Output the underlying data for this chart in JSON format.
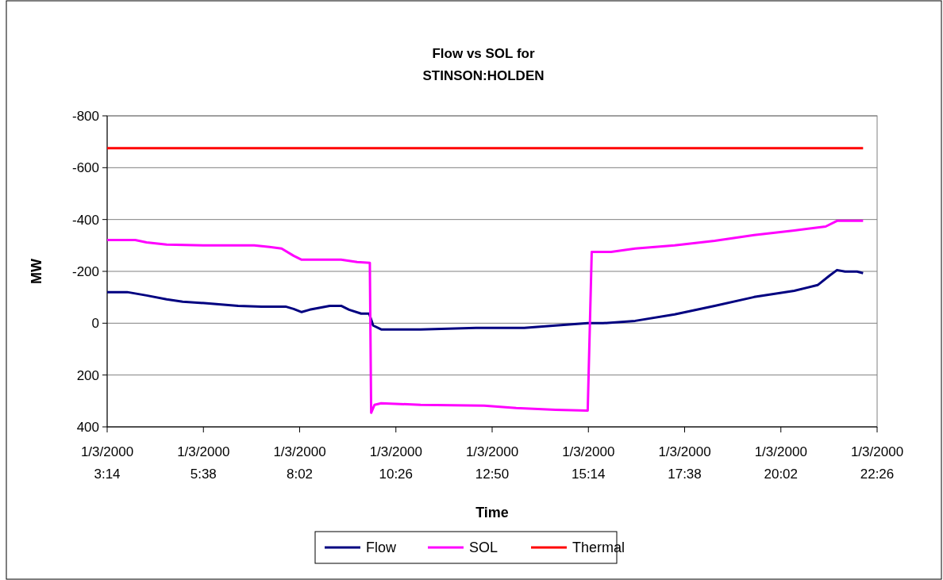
{
  "chart_data": {
    "type": "line",
    "title": "Flow vs SOL for\nSTINSON:HOLDEN",
    "xlabel": "Time",
    "ylabel": "MW",
    "xlim": [
      "2000-01-03T03:14",
      "2000-01-03T22:26"
    ],
    "xticks": [
      {
        "value": "2000-01-03T03:14",
        "label": "1/3/2000\n3:14"
      },
      {
        "value": "2000-01-03T05:38",
        "label": "1/3/2000\n5:38"
      },
      {
        "value": "2000-01-03T08:02",
        "label": "1/3/2000\n8:02"
      },
      {
        "value": "2000-01-03T10:26",
        "label": "1/3/2000\n10:26"
      },
      {
        "value": "2000-01-03T12:50",
        "label": "1/3/2000\n12:50"
      },
      {
        "value": "2000-01-03T15:14",
        "label": "1/3/2000\n15:14"
      },
      {
        "value": "2000-01-03T17:38",
        "label": "1/3/2000\n17:38"
      },
      {
        "value": "2000-01-03T20:02",
        "label": "1/3/2000\n20:02"
      },
      {
        "value": "2000-01-03T22:26",
        "label": "1/3/2000\n22:26"
      }
    ],
    "ylim": [
      400,
      -800
    ],
    "yticks": [
      -800,
      -600,
      -400,
      -200,
      0,
      200,
      400
    ],
    "grid": "y",
    "legend": "bottom",
    "line_style": "solid",
    "series": [
      {
        "name": "Flow",
        "color": "#000080",
        "x": [
          "2000-01-03T03:14",
          "2000-01-03T03:44",
          "2000-01-03T04:13",
          "2000-01-03T04:43",
          "2000-01-03T05:07",
          "2000-01-03T05:43",
          "2000-01-03T06:30",
          "2000-01-03T07:05",
          "2000-01-03T07:41",
          "2000-01-03T07:53",
          "2000-01-03T08:05",
          "2000-01-03T08:17",
          "2000-01-03T08:47",
          "2000-01-03T09:04",
          "2000-01-03T09:16",
          "2000-01-03T09:34",
          "2000-01-03T09:46",
          "2000-01-03T09:52",
          "2000-01-03T10:04",
          "2000-01-03T11:03",
          "2000-01-03T12:26",
          "2000-01-03T13:38",
          "2000-01-03T14:25",
          "2000-01-03T15:13",
          "2000-01-03T15:36",
          "2000-01-03T16:24",
          "2000-01-03T17:23",
          "2000-01-03T18:23",
          "2000-01-03T19:22",
          "2000-01-03T20:22",
          "2000-01-03T20:57",
          "2000-01-03T21:15",
          "2000-01-03T21:26",
          "2000-01-03T21:38",
          "2000-01-03T21:56",
          "2000-01-03T22:05"
        ],
        "values": [
          -120,
          -120,
          -107,
          -92,
          -83,
          -77,
          -67,
          -64,
          -64,
          -55,
          -43,
          -52,
          -67,
          -67,
          -52,
          -37,
          -37,
          9,
          24,
          24,
          18,
          18,
          9,
          0,
          0,
          -9,
          -34,
          -67,
          -101,
          -125,
          -147,
          -184,
          -205,
          -199,
          -199,
          -193
        ]
      },
      {
        "name": "SOL",
        "color": "#ff00ff",
        "x": [
          "2000-01-03T03:14",
          "2000-01-03T03:56",
          "2000-01-03T04:13",
          "2000-01-03T04:43",
          "2000-01-03T05:43",
          "2000-01-03T06:54",
          "2000-01-03T07:17",
          "2000-01-03T07:35",
          "2000-01-03T07:53",
          "2000-01-03T08:05",
          "2000-01-03T09:04",
          "2000-01-03T09:28",
          "2000-01-03T09:47",
          "2000-01-03T09:49",
          "2000-01-03T09:54",
          "2000-01-03T10:04",
          "2000-01-03T11:03",
          "2000-01-03T12:38",
          "2000-01-03T13:26",
          "2000-01-03T14:25",
          "2000-01-03T15:13",
          "2000-01-03T15:19",
          "2000-01-03T15:48",
          "2000-01-03T16:24",
          "2000-01-03T17:23",
          "2000-01-03T18:23",
          "2000-01-03T19:22",
          "2000-01-03T20:22",
          "2000-01-03T21:09",
          "2000-01-03T21:26",
          "2000-01-03T22:05"
        ],
        "values": [
          -321,
          -321,
          -312,
          -303,
          -300,
          -300,
          -294,
          -288,
          -260,
          -245,
          -245,
          -236,
          -233,
          346,
          315,
          309,
          315,
          318,
          327,
          334,
          337,
          -275,
          -275,
          -288,
          -300,
          -318,
          -340,
          -358,
          -373,
          -395,
          -395
        ]
      },
      {
        "name": "Thermal",
        "color": "#ff0000",
        "x": [
          "2000-01-03T03:14",
          "2000-01-03T22:05"
        ],
        "values": [
          -675,
          -675
        ]
      }
    ]
  }
}
